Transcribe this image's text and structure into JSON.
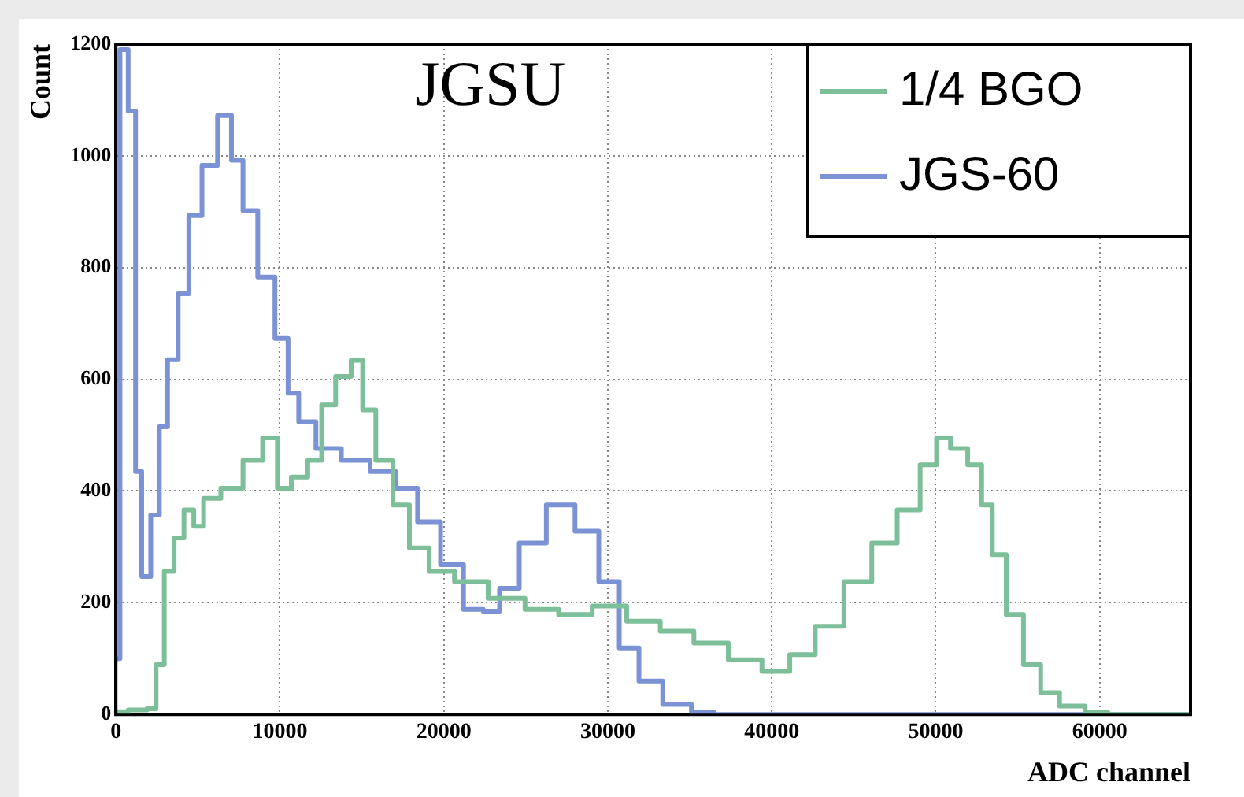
{
  "chart_data": {
    "type": "step",
    "xlabel": "ADC channel",
    "ylabel": "Count",
    "annotations": [
      "JGSU"
    ],
    "xlim": [
      0,
      65536
    ],
    "xticks": [
      0,
      10000,
      20000,
      30000,
      40000,
      50000,
      60000
    ],
    "ylim": [
      0,
      1200
    ],
    "yticks": [
      0,
      200,
      400,
      600,
      800,
      1000,
      1200
    ],
    "grid": true,
    "legend": "top right",
    "marker": "none",
    "line_style": "solid",
    "series": [
      {
        "name": "1/4 BGO",
        "color": "#7dbf99",
        "x": [
          0,
          1500,
          2300,
          2600,
          3300,
          3800,
          4500,
          5000,
          5700,
          7100,
          8400,
          9500,
          10200,
          11200,
          12200,
          12900,
          13900,
          14800,
          15300,
          16400,
          17400,
          18400,
          19800,
          21500,
          23900,
          26000,
          28000,
          30100,
          32200,
          34200,
          36300,
          38400,
          40400,
          41800,
          43500,
          45300,
          46900,
          48400,
          49700,
          50400,
          51400,
          52500,
          53100,
          53800,
          54800,
          55900,
          56900,
          58200,
          60000,
          61000,
          65536
        ],
        "values": [
          5,
          8,
          10,
          89,
          256,
          316,
          366,
          337,
          387,
          405,
          455,
          495,
          405,
          425,
          455,
          554,
          605,
          634,
          545,
          455,
          375,
          298,
          256,
          238,
          208,
          188,
          179,
          194,
          167,
          149,
          128,
          98,
          77,
          107,
          158,
          238,
          307,
          366,
          447,
          495,
          476,
          447,
          375,
          286,
          179,
          89,
          39,
          15,
          3,
          0,
          0
        ]
      },
      {
        "name": "JGS-60",
        "color": "#7b93d4",
        "x": [
          0,
          500,
          1000,
          1400,
          1750,
          2500,
          2800,
          3500,
          4100,
          4800,
          5700,
          6700,
          7400,
          8100,
          9200,
          10200,
          10800,
          11500,
          12900,
          14600,
          16400,
          17700,
          19100,
          20500,
          21900,
          22900,
          23900,
          25300,
          27200,
          28800,
          30100,
          31300,
          32500,
          34200,
          36000,
          37000,
          65536
        ],
        "values": [
          100,
          1190,
          1080,
          435,
          247,
          357,
          515,
          635,
          753,
          893,
          983,
          1072,
          992,
          902,
          783,
          673,
          575,
          524,
          476,
          455,
          435,
          405,
          345,
          268,
          188,
          185,
          226,
          307,
          375,
          328,
          238,
          119,
          60,
          18,
          3,
          0,
          0
        ]
      }
    ]
  }
}
